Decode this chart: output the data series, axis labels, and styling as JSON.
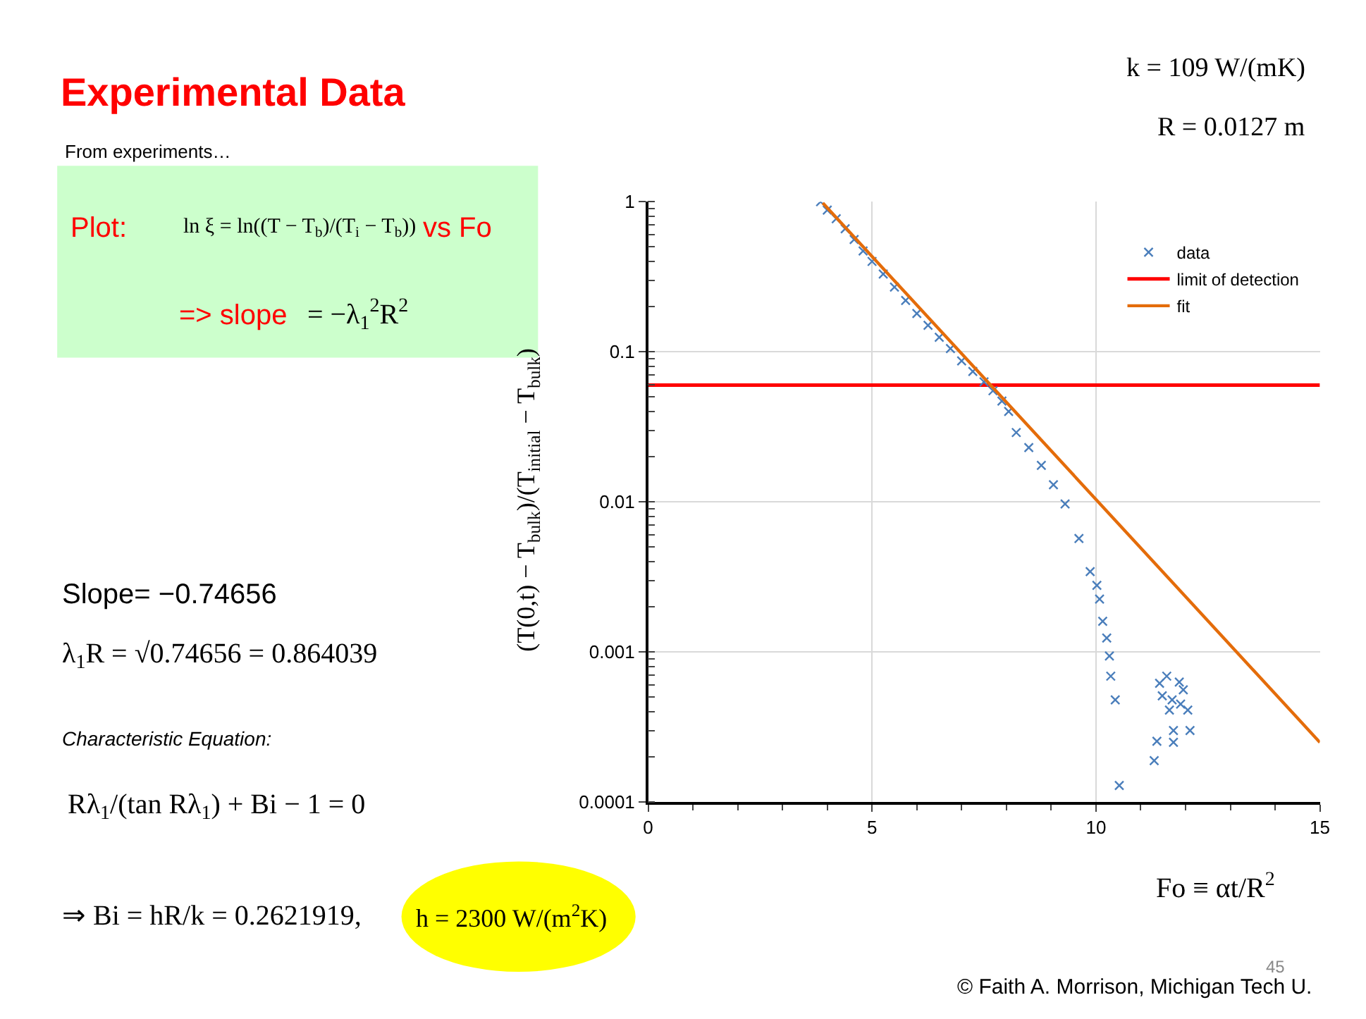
{
  "chart_data": {
    "type": "scatter",
    "title": "Experimental Data",
    "xlabel": "Fo ≡ αt/R$^{2}$",
    "ylabel": "(T(0,t) − T$_{bulk}$)/(T$_{initial}$ − T$_{bulk}$)",
    "xlim": [
      0,
      15
    ],
    "xticks": [
      0,
      5,
      10,
      15
    ],
    "ylim": [
      0.0001,
      1
    ],
    "yticks": [
      0.0001,
      0.001,
      0.01,
      0.1,
      1
    ],
    "log": "y",
    "grid": true,
    "legend": "top right",
    "marker": "cross",
    "series": [
      {
        "name": "data",
        "color": "#4a7ebb",
        "x": [
          3.85,
          4.0,
          4.2,
          4.4,
          4.6,
          4.8,
          5.0,
          5.25,
          5.5,
          5.75,
          6.0,
          6.25,
          6.5,
          6.75,
          7.0,
          7.25,
          7.5,
          7.7,
          7.9,
          8.05,
          8.22,
          8.5,
          8.78,
          9.05,
          9.31,
          9.62,
          9.87,
          10.02,
          10.08,
          10.15,
          10.24,
          10.3,
          10.33,
          10.43,
          10.52,
          11.3,
          11.36,
          11.42,
          11.48,
          11.58,
          11.64,
          11.7,
          11.73,
          11.73,
          11.86,
          11.89,
          11.95,
          12.05,
          12.1
        ],
        "values": [
          1.0,
          0.88,
          0.77,
          0.66,
          0.56,
          0.47,
          0.4,
          0.33,
          0.27,
          0.22,
          0.18,
          0.15,
          0.125,
          0.105,
          0.087,
          0.074,
          0.063,
          0.055,
          0.047,
          0.04,
          0.029,
          0.023,
          0.0175,
          0.013,
          0.0097,
          0.0057,
          0.00343,
          0.00278,
          0.00225,
          0.0016,
          0.00124,
          0.00094,
          0.00069,
          0.00048,
          0.000129,
          0.000189,
          0.000254,
          0.000618,
          0.00051,
          0.00069,
          0.00041,
          0.00048,
          0.0003,
          0.00025,
          0.00063,
          0.00045,
          0.00056,
          0.00041,
          0.0003
        ]
      },
      {
        "name": "fit",
        "type": "line",
        "marker": "none",
        "line_style": "solid",
        "color": "#e46c0a",
        "x": [
          3.9,
          15
        ],
        "values": [
          0.98,
          0.00025
        ]
      }
    ],
    "ref_lines": [
      {
        "axis": "y",
        "value": 0.06,
        "label": "limit of detection",
        "color": "#ff0000",
        "line_style": "solid"
      }
    ],
    "annotations": [
      "From experiments…",
      "Plot:",
      "ln ξ = ln((T − T$_{b}$)/(T$_{i}$ − T$_{b}$))",
      "vs Fo",
      "=> slope",
      "= −λ$_{1}$$^{2}$R$^{2}$",
      "Slope= −0.74656",
      "λ$_{1}$R = √0.74656 = 0.864039",
      "Characteristic Equation:",
      "Rλ$_{1}$/(tan Rλ$_{1}$) + Bi − 1 = 0",
      "⇒ Bi = hR/k = 0.2621919,",
      "h = 2300 W/(m$^{2}$K)",
      "k = 109 W/(mK)",
      "R = 0.0127 m",
      "45",
      "© Faith A. Morrison, Michigan Tech U."
    ]
  }
}
